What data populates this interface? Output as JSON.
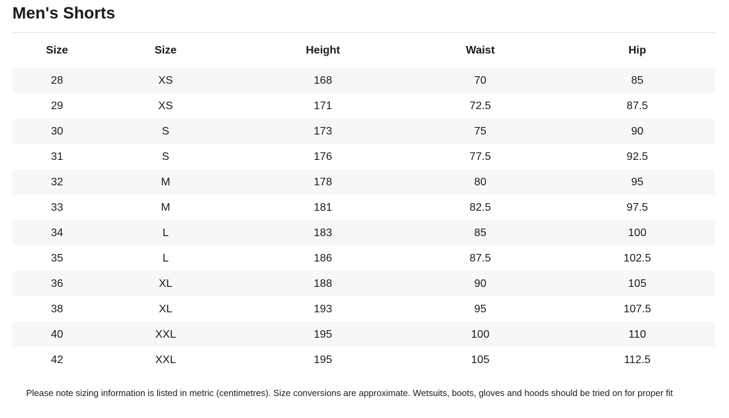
{
  "title": "Men's Shorts",
  "table": {
    "headers": [
      "Size",
      "Size",
      "Height",
      "Waist",
      "Hip"
    ],
    "rows": [
      [
        "28",
        "XS",
        "168",
        "70",
        "85"
      ],
      [
        "29",
        "XS",
        "171",
        "72.5",
        "87.5"
      ],
      [
        "30",
        "S",
        "173",
        "75",
        "90"
      ],
      [
        "31",
        "S",
        "176",
        "77.5",
        "92.5"
      ],
      [
        "32",
        "M",
        "178",
        "80",
        "95"
      ],
      [
        "33",
        "M",
        "181",
        "82.5",
        "97.5"
      ],
      [
        "34",
        "L",
        "183",
        "85",
        "100"
      ],
      [
        "35",
        "L",
        "186",
        "87.5",
        "102.5"
      ],
      [
        "36",
        "XL",
        "188",
        "90",
        "105"
      ],
      [
        "38",
        "XL",
        "193",
        "95",
        "107.5"
      ],
      [
        "40",
        "XXL",
        "195",
        "100",
        "110"
      ],
      [
        "42",
        "XXL",
        "195",
        "105",
        "112.5"
      ]
    ]
  },
  "note": "Please note sizing information is listed in metric (centimetres). Size conversions are approximate. Wetsuits, boots, gloves and hoods should be tried on for proper fit"
}
